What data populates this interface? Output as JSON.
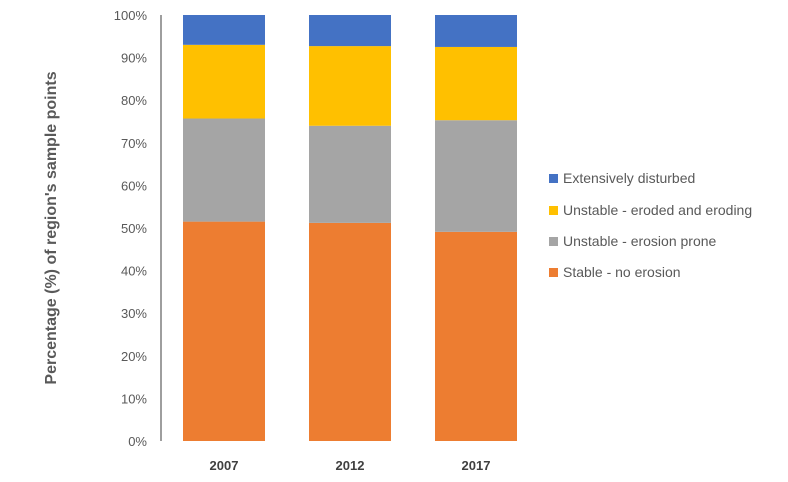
{
  "chart_data": {
    "type": "bar",
    "stacked": true,
    "title": "",
    "xlabel": "",
    "ylabel": "Percentage (%) of region's sample points",
    "ylim": [
      0,
      100
    ],
    "yticks": [
      "0%",
      "10%",
      "20%",
      "30%",
      "40%",
      "50%",
      "60%",
      "70%",
      "80%",
      "90%",
      "100%"
    ],
    "categories": [
      "2007",
      "2012",
      "2017"
    ],
    "series": [
      {
        "name": "Stable - no erosion",
        "color": "#ED7D31",
        "values": [
          51.5,
          51.2,
          49.1
        ]
      },
      {
        "name": "Unstable - erosion prone",
        "color": "#A5A5A5",
        "values": [
          24.2,
          22.8,
          26.2
        ]
      },
      {
        "name": "Unstable - eroded and eroding",
        "color": "#FFC000",
        "values": [
          17.3,
          18.7,
          17.2
        ]
      },
      {
        "name": "Extensively disturbed",
        "color": "#4472C4",
        "values": [
          7.0,
          7.3,
          7.5
        ]
      }
    ],
    "legend_position": "right",
    "grid": false
  }
}
